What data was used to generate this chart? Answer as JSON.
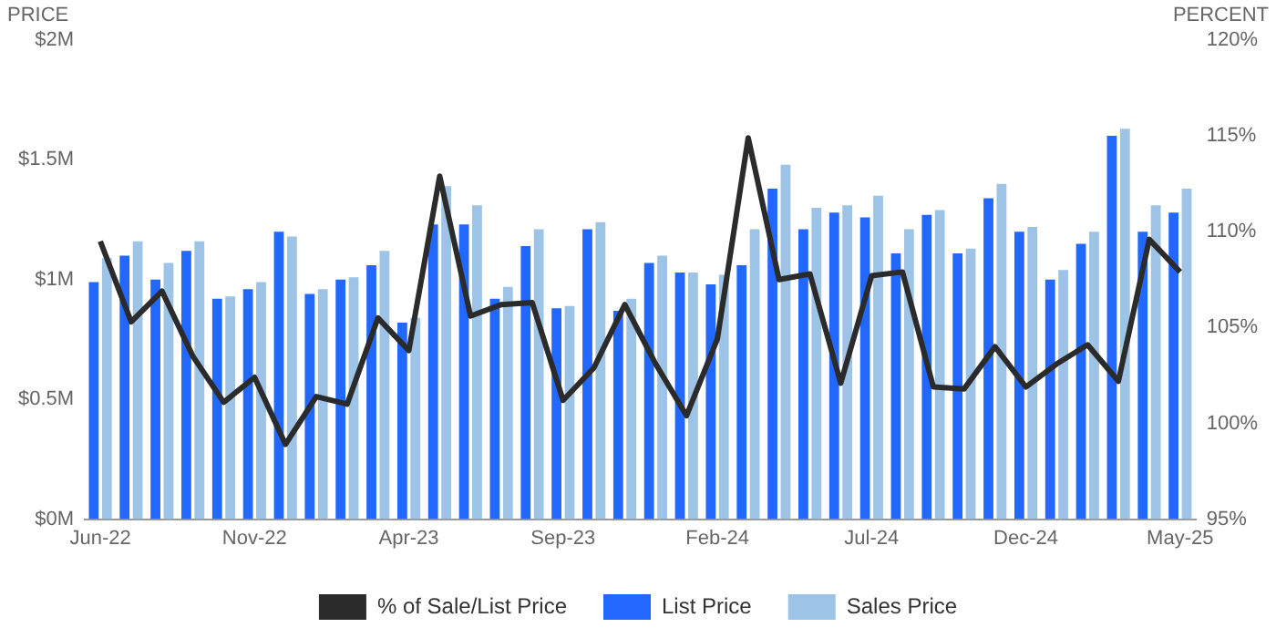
{
  "chart_data": {
    "type": "bar",
    "ylabel": "PRICE",
    "y2label": "PERCENT",
    "categories": [
      "Jun-22",
      null,
      null,
      null,
      null,
      "Nov-22",
      null,
      null,
      null,
      null,
      "Apr-23",
      null,
      null,
      null,
      null,
      "Sep-23",
      null,
      null,
      null,
      null,
      "Feb-24",
      null,
      null,
      null,
      null,
      "Jul-24",
      null,
      null,
      null,
      null,
      "Dec-24",
      null,
      null,
      null,
      null,
      "May-25"
    ],
    "series": [
      {
        "name": "% of Sale/List Price",
        "type": "line",
        "axis": "y2",
        "color": "#2b2b2b",
        "values": [
          109.5,
          105.3,
          106.9,
          103.5,
          101.1,
          102.4,
          98.9,
          101.4,
          101.0,
          105.5,
          103.8,
          112.9,
          105.6,
          106.2,
          106.3,
          101.2,
          102.9,
          106.2,
          103.1,
          100.4,
          104.4,
          114.9,
          107.5,
          107.8,
          102.1,
          107.7,
          107.9,
          101.9,
          101.8,
          104.0,
          101.9,
          103.1,
          104.1,
          102.2,
          109.6,
          107.9
        ]
      },
      {
        "name": "List Price",
        "color": "#2268ff",
        "values": [
          0.99,
          1.1,
          1.0,
          1.12,
          0.92,
          0.96,
          1.2,
          0.94,
          1.0,
          1.06,
          0.82,
          1.23,
          1.23,
          0.92,
          1.14,
          0.88,
          1.21,
          0.87,
          1.07,
          1.03,
          0.98,
          1.06,
          1.38,
          1.21,
          1.28,
          1.26,
          1.11,
          1.27,
          1.11,
          1.34,
          1.2,
          1.0,
          1.15,
          1.6,
          1.2,
          1.28
        ]
      },
      {
        "name": "Sales Price",
        "color": "#9dc3e6",
        "values": [
          1.09,
          1.16,
          1.07,
          1.16,
          0.93,
          0.99,
          1.18,
          0.96,
          1.01,
          1.12,
          0.84,
          1.39,
          1.31,
          0.97,
          1.21,
          0.89,
          1.24,
          0.92,
          1.1,
          1.03,
          1.02,
          1.21,
          1.48,
          1.3,
          1.31,
          1.35,
          1.21,
          1.29,
          1.13,
          1.4,
          1.22,
          1.04,
          1.2,
          1.63,
          1.31,
          1.38
        ]
      }
    ],
    "ylim": [
      0,
      2
    ],
    "yticks": [
      {
        "value": 0,
        "label": "$0M"
      },
      {
        "value": 0.5,
        "label": "$0.5M"
      },
      {
        "value": 1,
        "label": "$1M"
      },
      {
        "value": 1.5,
        "label": "$1.5M"
      },
      {
        "value": 2,
        "label": "$2M"
      }
    ],
    "y2lim": [
      95,
      120
    ],
    "y2ticks": [
      {
        "value": 95,
        "label": "95%"
      },
      {
        "value": 100,
        "label": "100%"
      },
      {
        "value": 105,
        "label": "105%"
      },
      {
        "value": 110,
        "label": "110%"
      },
      {
        "value": 115,
        "label": "115%"
      },
      {
        "value": 120,
        "label": "120%"
      }
    ],
    "grid": false,
    "legend": "bottom",
    "marker": "none",
    "line_style": "solid"
  }
}
